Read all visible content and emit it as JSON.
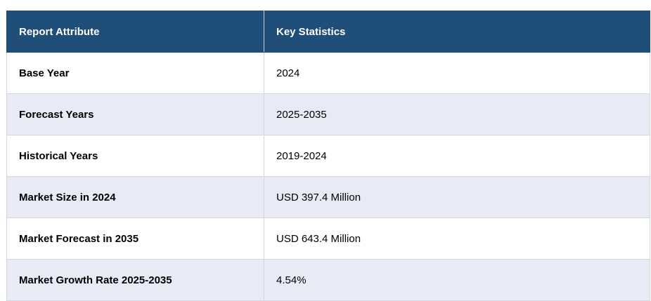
{
  "table": {
    "headers": [
      "Report Attribute",
      "Key Statistics"
    ],
    "rows": [
      [
        "Base Year",
        "2024"
      ],
      [
        "Forecast Years",
        "2025-2035"
      ],
      [
        "Historical Years",
        "2019-2024"
      ],
      [
        "Market Size in 2024",
        "USD 397.4 Million"
      ],
      [
        "Market Forecast in 2035",
        "USD 643.4 Million"
      ],
      [
        "Market Growth Rate 2025-2035",
        "4.54%"
      ]
    ],
    "colors": {
      "header_bg": "#1f4e79",
      "header_text": "#ffffff",
      "row_alt_bg": "#e8eaf6",
      "row_bg": "#ffffff"
    }
  }
}
